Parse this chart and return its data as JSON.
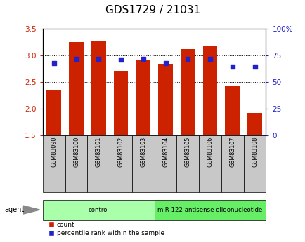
{
  "title": "GDS1729 / 21031",
  "samples": [
    "GSM83090",
    "GSM83100",
    "GSM83101",
    "GSM83102",
    "GSM83103",
    "GSM83104",
    "GSM83105",
    "GSM83106",
    "GSM83107",
    "GSM83108"
  ],
  "counts": [
    2.35,
    3.25,
    3.27,
    2.72,
    2.91,
    2.85,
    3.12,
    3.17,
    2.42,
    1.92
  ],
  "percentiles": [
    68,
    72,
    72,
    71,
    72,
    68,
    72,
    72,
    65,
    65
  ],
  "ylim_left": [
    1.5,
    3.5
  ],
  "yticks_left": [
    1.5,
    2.0,
    2.5,
    3.0,
    3.5
  ],
  "ylim_right": [
    0,
    100
  ],
  "yticks_right": [
    0,
    25,
    50,
    75,
    100
  ],
  "bar_color": "#cc2200",
  "dot_color": "#2222cc",
  "bar_width": 0.65,
  "groups": [
    {
      "label": "control",
      "start": 0,
      "end": 5,
      "color": "#aaffaa"
    },
    {
      "label": "miR-122 antisense oligonucleotide",
      "start": 5,
      "end": 10,
      "color": "#66ee66"
    }
  ],
  "agent_label": "agent",
  "legend_count_label": "count",
  "legend_percentile_label": "percentile rank within the sample",
  "title_fontsize": 11,
  "axis_label_color_left": "#cc2200",
  "axis_label_color_right": "#2222cc",
  "tick_label_bg": "#c8c8c8",
  "plot_bg": "#ffffff",
  "outer_bg": "#ffffff"
}
